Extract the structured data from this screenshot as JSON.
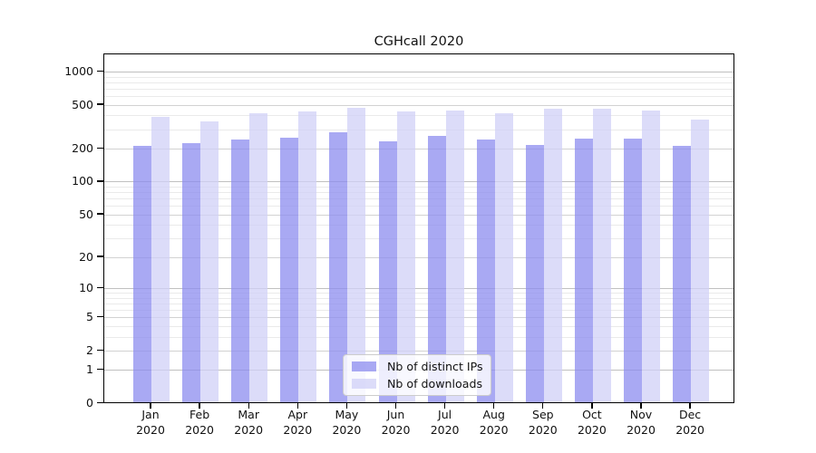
{
  "title": "CGHcall 2020",
  "chart_data": {
    "type": "bar",
    "title": "CGHcall 2020",
    "months": [
      "Jan",
      "Feb",
      "Mar",
      "Apr",
      "May",
      "Jun",
      "Jul",
      "Aug",
      "Sep",
      "Oct",
      "Nov",
      "Dec"
    ],
    "year": "2020",
    "categories": [
      "Jan 2020",
      "Feb 2020",
      "Mar 2020",
      "Apr 2020",
      "May 2020",
      "Jun 2020",
      "Jul 2020",
      "Aug 2020",
      "Sep 2020",
      "Oct 2020",
      "Nov 2020",
      "Dec 2020"
    ],
    "series": [
      {
        "name": "Nb of distinct IPs",
        "color": "#8c8cef",
        "alpha": 0.75,
        "values": [
          215,
          225,
          242,
          255,
          285,
          235,
          263,
          244,
          218,
          248,
          249,
          212
        ]
      },
      {
        "name": "Nb of downloads",
        "color": "#d0d0f7",
        "alpha": 0.75,
        "values": [
          395,
          355,
          425,
          437,
          475,
          436,
          450,
          422,
          464,
          464,
          445,
          370
        ]
      }
    ],
    "y_ticks": [
      0,
      1,
      2,
      5,
      10,
      20,
      50,
      100,
      200,
      500,
      1000
    ],
    "y_scale": "log1p",
    "ylim": [
      0,
      1440
    ],
    "xlabel": "",
    "ylabel": "",
    "grid": true,
    "grid_major_values": [
      1,
      10,
      100,
      1000
    ],
    "grid_mid_values": [
      2,
      5,
      20,
      50,
      200,
      500
    ],
    "grid_minor_values": [
      3,
      4,
      6,
      7,
      8,
      9,
      30,
      40,
      60,
      70,
      80,
      90,
      300,
      400,
      600,
      700,
      800,
      900
    ],
    "legend_position": "lower center"
  },
  "colors": {
    "axis": "#000000",
    "grid_major": "#c0c0c0",
    "grid_mid": "#d2d2d2",
    "grid_minor": "#eaeaea",
    "background": "#ffffff"
  }
}
